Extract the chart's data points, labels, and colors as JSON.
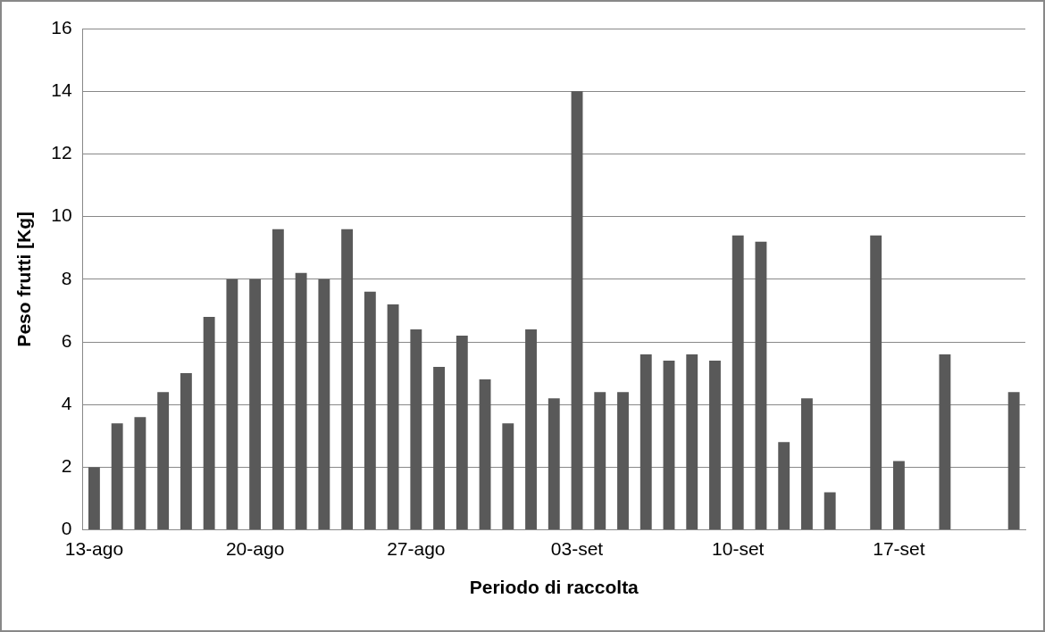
{
  "chart_data": {
    "type": "bar",
    "xlabel": "Periodo di raccolta",
    "ylabel": "Peso frutti [Kg]",
    "categories": [
      "13-ago",
      null,
      null,
      null,
      null,
      null,
      null,
      "20-ago",
      null,
      null,
      null,
      null,
      null,
      null,
      "27-ago",
      null,
      null,
      null,
      null,
      null,
      null,
      "03-set",
      null,
      null,
      null,
      null,
      null,
      null,
      "10-set",
      null,
      null,
      null,
      null,
      null,
      null,
      "17-set",
      null,
      null,
      null,
      null,
      null
    ],
    "values": [
      2.0,
      3.4,
      3.6,
      4.4,
      5.0,
      6.8,
      8.0,
      8.0,
      9.6,
      8.2,
      8.0,
      9.6,
      7.6,
      7.2,
      6.4,
      5.2,
      6.2,
      4.8,
      3.4,
      6.4,
      4.2,
      14.0,
      4.4,
      4.4,
      5.6,
      5.4,
      5.6,
      5.4,
      9.4,
      9.2,
      2.8,
      4.2,
      1.2,
      null,
      9.4,
      2.2,
      null,
      5.6,
      null,
      null,
      4.4
    ],
    "color": "#595959",
    "ylim": [
      0,
      16
    ],
    "yticks": [
      0,
      2,
      4,
      6,
      8,
      10,
      12,
      14,
      16
    ],
    "grid": "y",
    "legend": false
  }
}
